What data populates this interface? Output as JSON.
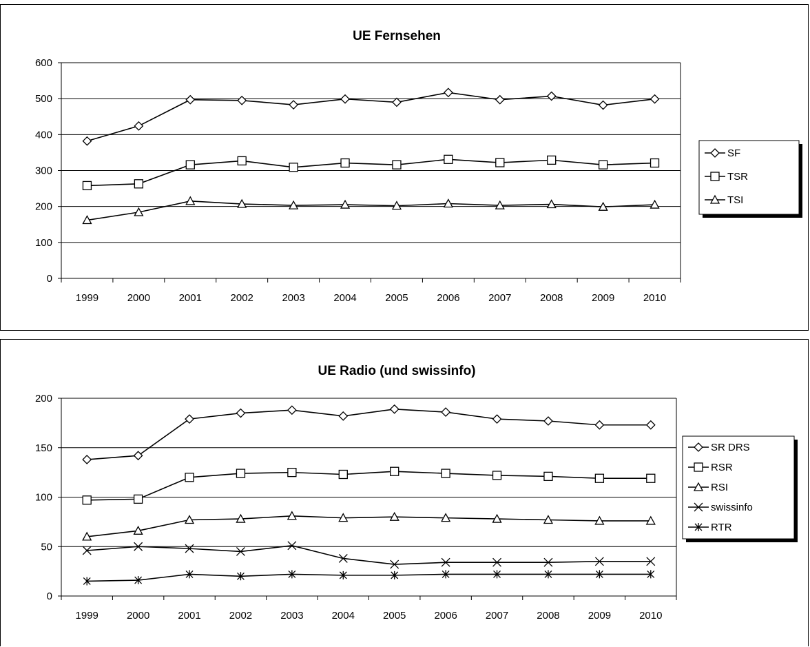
{
  "chart_data": [
    {
      "type": "line",
      "title": "UE Fernsehen",
      "xlabel": "",
      "ylabel": "",
      "categories": [
        "1999",
        "2000",
        "2001",
        "2002",
        "2003",
        "2004",
        "2005",
        "2006",
        "2007",
        "2008",
        "2009",
        "2010"
      ],
      "ylim": [
        0,
        600
      ],
      "yticks": [
        0,
        100,
        200,
        300,
        400,
        500,
        600
      ],
      "grid": true,
      "legend": "right",
      "series": [
        {
          "name": "SF",
          "marker": "diamond",
          "values": [
            382,
            424,
            497,
            495,
            483,
            499,
            490,
            517,
            497,
            507,
            482,
            499
          ]
        },
        {
          "name": "TSR",
          "marker": "square",
          "values": [
            258,
            263,
            316,
            327,
            309,
            321,
            316,
            331,
            322,
            329,
            316,
            321
          ]
        },
        {
          "name": "TSI",
          "marker": "triangle",
          "values": [
            162,
            184,
            215,
            207,
            203,
            205,
            202,
            208,
            203,
            206,
            199,
            205
          ]
        }
      ]
    },
    {
      "type": "line",
      "title": "UE Radio (und swissinfo)",
      "xlabel": "",
      "ylabel": "",
      "categories": [
        "1999",
        "2000",
        "2001",
        "2002",
        "2003",
        "2004",
        "2005",
        "2006",
        "2007",
        "2008",
        "2009",
        "2010"
      ],
      "ylim": [
        0,
        200
      ],
      "yticks": [
        0,
        50,
        100,
        150,
        200
      ],
      "grid": true,
      "legend": "right",
      "series": [
        {
          "name": "SR DRS",
          "marker": "diamond",
          "values": [
            138,
            142,
            179,
            185,
            188,
            182,
            189,
            186,
            179,
            177,
            173,
            173
          ]
        },
        {
          "name": "RSR",
          "marker": "square",
          "values": [
            97,
            98,
            120,
            124,
            125,
            123,
            126,
            124,
            122,
            121,
            119,
            119
          ]
        },
        {
          "name": "RSI",
          "marker": "triangle",
          "values": [
            60,
            66,
            77,
            78,
            81,
            79,
            80,
            79,
            78,
            77,
            76,
            76
          ]
        },
        {
          "name": "swissinfo",
          "marker": "x",
          "values": [
            46,
            50,
            48,
            45,
            51,
            38,
            32,
            34,
            34,
            34,
            35,
            35
          ]
        },
        {
          "name": "RTR",
          "marker": "star",
          "values": [
            15,
            16,
            22,
            20,
            22,
            21,
            21,
            22,
            22,
            22,
            22,
            22
          ]
        }
      ]
    }
  ]
}
